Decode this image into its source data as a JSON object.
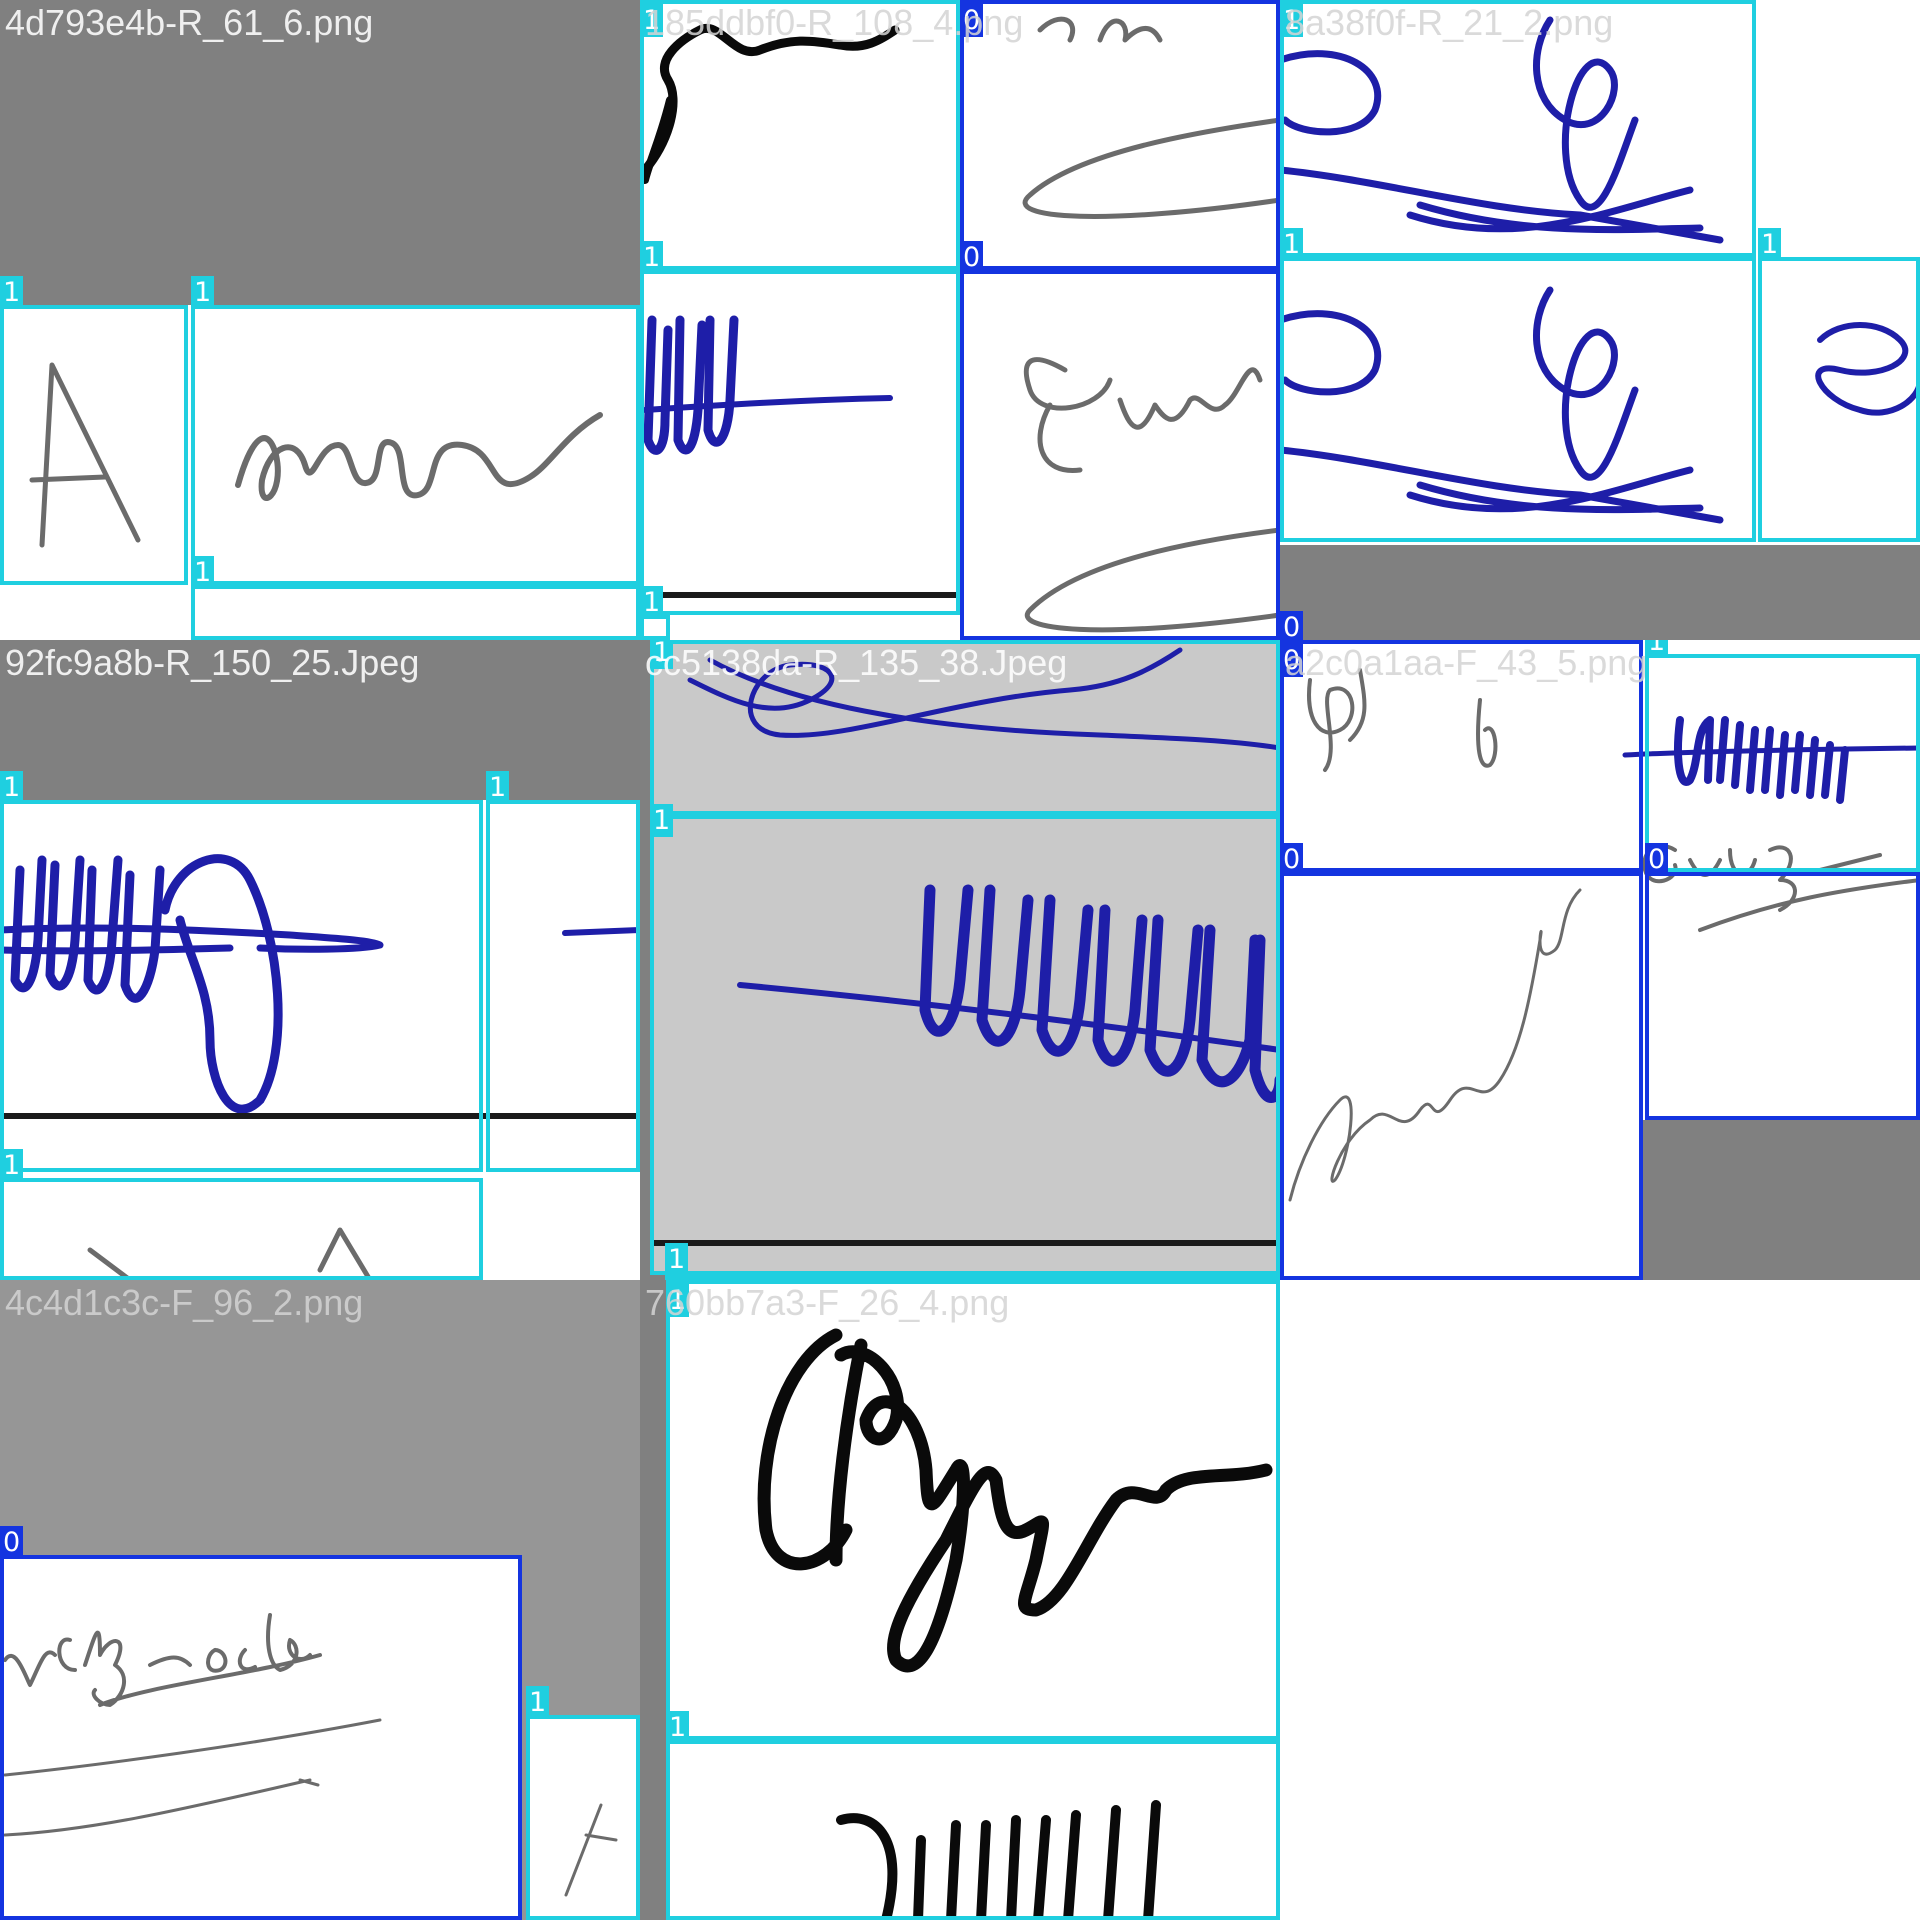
{
  "tiles": [
    {
      "name": "4d793e4b-R_61_6.png"
    },
    {
      "name": "185ddbf0-R_108_4.png"
    },
    {
      "name": "8a38f0f-R_21_2.png"
    },
    {
      "name": "92fc9a8b-R_150_25.Jpeg"
    },
    {
      "name": "cc5138da-R_135_38.Jpeg"
    },
    {
      "name": "a2c0a1aa-F_43_5.png"
    },
    {
      "name": "4c4d1c3c-F_96_2.png"
    },
    {
      "name": "760bb7a3-F_26_4.png"
    }
  ],
  "class_labels": {
    "genuine": "1",
    "forged": "0"
  },
  "colors": {
    "class_1_box": "#1fcfe0",
    "class_0_box": "#1434e0",
    "letterbox": "#808080"
  }
}
